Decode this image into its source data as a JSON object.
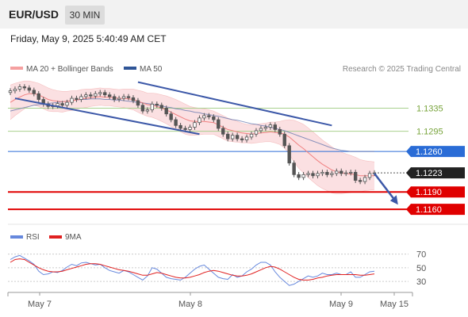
{
  "header": {
    "pair": "EUR/USD",
    "timeframe": "30 MIN"
  },
  "datetime": "Friday, May 9, 2025 5:40:49 AM CET",
  "source_note": "Research © 2025 Trading Central",
  "colors": {
    "candle": "#555555",
    "bb_fill": "#fadadd",
    "bb_line": "#f0a0a0",
    "ma20": "#f08080",
    "ma50": "#6a7ab0",
    "channel": "#3c58a8",
    "green_level": "#a8d08d",
    "support": "#e00000",
    "blue_level": "#2a6cd6",
    "rsi": "#6688dd",
    "rsi_ma": "#e02020"
  },
  "chart_data": [
    {
      "type": "candlestick",
      "title": "EUR/USD",
      "legend": [
        {
          "name": "MA 20 + Bollinger Bands",
          "color": "#f5a0a0"
        },
        {
          "name": "MA 50",
          "color": "#2f5597"
        }
      ],
      "legend_position": "top-left",
      "x_tick_labels": [
        "May 7",
        "May 8",
        "May 9",
        "May 15"
      ],
      "ylim": [
        1.1145,
        1.1385
      ],
      "levels": [
        {
          "value": 1.1335,
          "label": "1.1335",
          "style": "green-line"
        },
        {
          "value": 1.1295,
          "label": "1.1295",
          "style": "green-line"
        },
        {
          "value": 1.126,
          "label": "1.1260",
          "style": "blue-tag"
        },
        {
          "value": 1.1223,
          "label": "1.1223",
          "style": "last-price-tag"
        },
        {
          "value": 1.119,
          "label": "1.1190",
          "style": "red-tag"
        },
        {
          "value": 1.116,
          "label": "1.1160",
          "style": "red-tag"
        }
      ],
      "close": [
        1.1365,
        1.1368,
        1.1372,
        1.137,
        1.1366,
        1.136,
        1.135,
        1.1342,
        1.1338,
        1.1339,
        1.1343,
        1.134,
        1.1345,
        1.1352,
        1.135,
        1.1355,
        1.1358,
        1.1356,
        1.136,
        1.1362,
        1.1358,
        1.1355,
        1.135,
        1.1352,
        1.1355,
        1.1353,
        1.1348,
        1.134,
        1.133,
        1.1332,
        1.1342,
        1.134,
        1.1335,
        1.1325,
        1.1315,
        1.1305,
        1.13,
        1.1298,
        1.1302,
        1.131,
        1.1318,
        1.1322,
        1.132,
        1.1315,
        1.13,
        1.129,
        1.1282,
        1.1288,
        1.1282,
        1.128,
        1.1285,
        1.129,
        1.1296,
        1.13,
        1.1302,
        1.1306,
        1.1298,
        1.129,
        1.127,
        1.124,
        1.122,
        1.1215,
        1.122,
        1.1222,
        1.1218,
        1.1222,
        1.1224,
        1.122,
        1.1222,
        1.1226,
        1.1222,
        1.1223,
        1.1224,
        1.121,
        1.1208,
        1.1215,
        1.1222,
        1.1223
      ],
      "ma20": [
        1.1345,
        1.135,
        1.1354,
        1.1358,
        1.136,
        1.136,
        1.1358,
        1.1354,
        1.135,
        1.1348,
        1.1347,
        1.1346,
        1.1347,
        1.1348,
        1.1349,
        1.1351,
        1.1352,
        1.1353,
        1.1354,
        1.1355,
        1.1354,
        1.1354,
        1.1353,
        1.1352,
        1.1352,
        1.1351,
        1.135,
        1.1347,
        1.1344,
        1.1341,
        1.134,
        1.1338,
        1.1335,
        1.1332,
        1.1328,
        1.1324,
        1.132,
        1.1316,
        1.1313,
        1.1312,
        1.1312,
        1.1312,
        1.1311,
        1.131,
        1.1306,
        1.1302,
        1.1298,
        1.1296,
        1.1294,
        1.1292,
        1.1291,
        1.129,
        1.1291,
        1.1292,
        1.1293,
        1.1294,
        1.1293,
        1.1292,
        1.129,
        1.1285,
        1.1278,
        1.1271,
        1.1265,
        1.1258,
        1.1251,
        1.1244,
        1.1238,
        1.1233,
        1.1228,
        1.1225,
        1.1223,
        1.1222,
        1.1221,
        1.122,
        1.1218,
        1.1218,
        1.1218,
        1.1218
      ],
      "bollinger_width": [
        0.003,
        0.0028,
        0.0026,
        0.0024,
        0.0022,
        0.002,
        0.002,
        0.002,
        0.002,
        0.0019,
        0.0018,
        0.0018,
        0.0017,
        0.0017,
        0.0016,
        0.0016,
        0.0016,
        0.0015,
        0.0015,
        0.0015,
        0.0015,
        0.0015,
        0.0015,
        0.0015,
        0.0016,
        0.0017,
        0.0018,
        0.0019,
        0.002,
        0.002,
        0.0021,
        0.0022,
        0.0023,
        0.0024,
        0.0025,
        0.0026,
        0.0026,
        0.0026,
        0.0025,
        0.0024,
        0.0023,
        0.0022,
        0.0021,
        0.002,
        0.002,
        0.002,
        0.002,
        0.0019,
        0.0018,
        0.0017,
        0.0016,
        0.0016,
        0.0016,
        0.0016,
        0.0016,
        0.0017,
        0.0018,
        0.002,
        0.0024,
        0.003,
        0.0036,
        0.004,
        0.0042,
        0.0043,
        0.0043,
        0.0043,
        0.0042,
        0.0041,
        0.004,
        0.0038,
        0.0036,
        0.0034,
        0.0032,
        0.003,
        0.0028,
        0.0026,
        0.0025,
        0.0024
      ],
      "ma50": [
        1.133,
        1.1332,
        1.1334,
        1.1336,
        1.1338,
        1.134,
        1.1341,
        1.1342,
        1.1343,
        1.1344,
        1.1345,
        1.1346,
        1.1347,
        1.1348,
        1.1349,
        1.135,
        1.135,
        1.1351,
        1.1351,
        1.1351,
        1.135,
        1.135,
        1.1349,
        1.1349,
        1.1348,
        1.1347,
        1.1346,
        1.1345,
        1.1344,
        1.1343,
        1.1342,
        1.134,
        1.1339,
        1.1337,
        1.1336,
        1.1334,
        1.1333,
        1.1331,
        1.133,
        1.1328,
        1.1327,
        1.1325,
        1.1324,
        1.1322,
        1.1321,
        1.1319,
        1.1317,
        1.1315,
        1.1314,
        1.1312,
        1.131,
        1.1308,
        1.1307,
        1.1305,
        1.1304,
        1.1302,
        1.13,
        1.1298,
        1.1296,
        1.1293,
        1.129,
        1.1287,
        1.1284,
        1.1281,
        1.1278,
        1.1275,
        1.1272,
        1.1269,
        1.1266,
        1.1264,
        1.1262,
        1.1261,
        1.126,
        1.126,
        1.126,
        1.126,
        1.126,
        1.126
      ],
      "channel_lines": [
        {
          "from": [
            1,
            1.1352
          ],
          "to": [
            40,
            1.129
          ]
        },
        {
          "from": [
            27,
            1.138
          ],
          "to": [
            68,
            1.1305
          ]
        }
      ],
      "projection_arrow": {
        "from": [
          77,
          1.1222
        ],
        "to": [
          82,
          1.1168
        ]
      }
    },
    {
      "type": "line",
      "title": "RSI",
      "legend": [
        {
          "name": "RSI",
          "color": "#6688dd"
        },
        {
          "name": "9MA",
          "color": "#e02020"
        }
      ],
      "ylim": [
        15,
        80
      ],
      "y_ticks": [
        70,
        50,
        30
      ],
      "rsi": [
        62,
        66,
        68,
        64,
        60,
        55,
        45,
        40,
        41,
        44,
        43,
        46,
        51,
        55,
        53,
        57,
        58,
        56,
        54,
        55,
        50,
        46,
        44,
        42,
        46,
        44,
        40,
        36,
        32,
        38,
        50,
        48,
        42,
        36,
        34,
        33,
        32,
        36,
        42,
        48,
        52,
        54,
        48,
        42,
        36,
        34,
        33,
        40,
        36,
        38,
        44,
        48,
        54,
        58,
        58,
        54,
        44,
        36,
        30,
        24,
        26,
        30,
        34,
        38,
        36,
        38,
        42,
        40,
        40,
        42,
        40,
        40,
        44,
        36,
        36,
        40,
        44,
        45
      ],
      "rsi_ma": [
        58,
        62,
        63,
        62,
        58,
        54,
        50,
        47,
        45,
        44,
        44,
        45,
        47,
        49,
        51,
        53,
        55,
        56,
        56,
        55,
        53,
        51,
        49,
        47,
        46,
        45,
        43,
        41,
        39,
        39,
        41,
        43,
        42,
        40,
        38,
        36,
        35,
        35,
        36,
        38,
        40,
        43,
        45,
        46,
        45,
        43,
        41,
        39,
        38,
        38,
        39,
        41,
        44,
        47,
        50,
        52,
        51,
        48,
        44,
        40,
        36,
        33,
        32,
        32,
        33,
        35,
        36,
        38,
        39,
        40,
        40,
        40,
        40,
        40,
        39,
        39,
        40,
        41
      ]
    }
  ]
}
